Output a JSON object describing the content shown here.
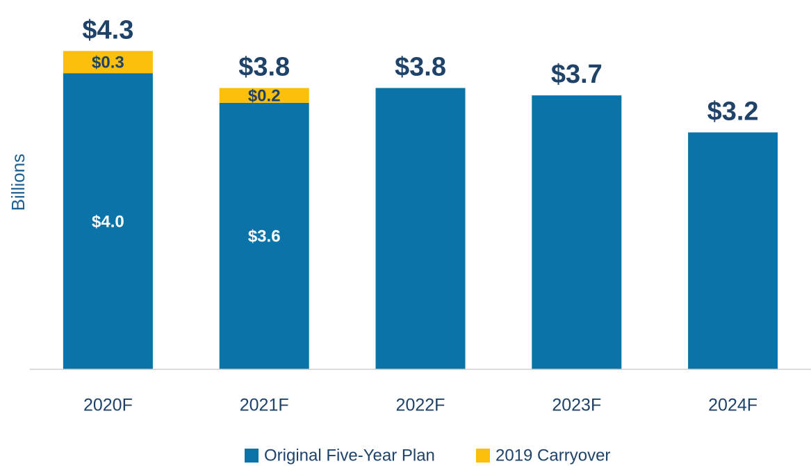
{
  "chart_data": {
    "type": "stacked_bar",
    "y_label": "Billions",
    "categories": [
      "2020F",
      "2021F",
      "2022F",
      "2023F",
      "2024F"
    ],
    "series": [
      {
        "name": "Original Five-Year Plan",
        "color": "#0a74a8",
        "values": [
          4.0,
          3.6,
          3.8,
          3.7,
          3.2
        ],
        "value_labels": [
          "$4.0",
          "$3.6",
          null,
          null,
          null
        ],
        "label_color": "#ffffff"
      },
      {
        "name": "2019 Carryover",
        "color": "#fcc00b",
        "values": [
          0.3,
          0.2,
          null,
          null,
          null
        ],
        "value_labels": [
          "$0.3",
          "$0.2",
          null,
          null,
          null
        ],
        "label_color": "#1f4269"
      }
    ],
    "totals": {
      "values": [
        4.3,
        3.8,
        3.8,
        3.7,
        3.2
      ],
      "value_labels": [
        "$4.3",
        "$3.8",
        "$3.8",
        "$3.7",
        "$3.2"
      ],
      "color": "#1f4269"
    },
    "ylim": [
      0,
      4.5
    ],
    "legend": "bottom"
  }
}
